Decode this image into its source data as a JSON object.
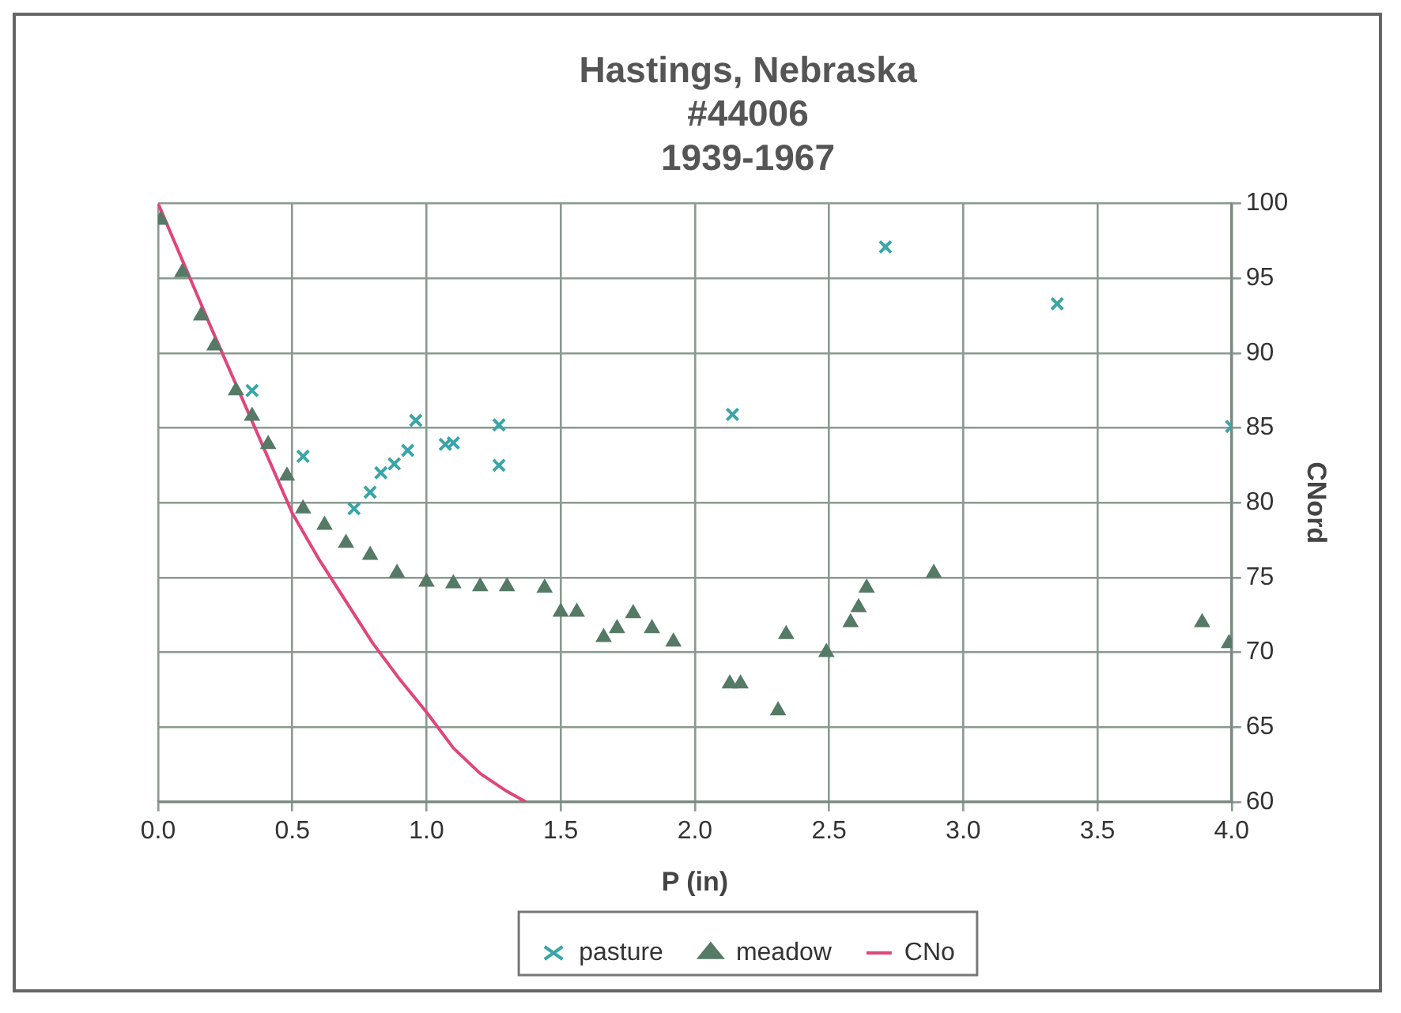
{
  "chart_data": {
    "type": "scatter",
    "title": "Hastings, Nebraska\n#44006\n1939-1967",
    "xlabel": "P (in)",
    "y2label": "CNord",
    "xlim": [
      0,
      4
    ],
    "xticks": [
      {
        "value": 0,
        "label": "0.0"
      },
      {
        "value": 0.5,
        "label": "0.5"
      },
      {
        "value": 1,
        "label": "1.0"
      },
      {
        "value": 1.5,
        "label": "1.5"
      },
      {
        "value": 2,
        "label": "2.0"
      },
      {
        "value": 2.5,
        "label": "2.5"
      },
      {
        "value": 3,
        "label": "3.0"
      },
      {
        "value": 3.5,
        "label": "3.5"
      },
      {
        "value": 4,
        "label": "4.0"
      }
    ],
    "y2lim": [
      60,
      100
    ],
    "y2ticks": [
      60,
      65,
      70,
      75,
      80,
      85,
      90,
      95,
      100
    ],
    "grid": true,
    "legend": "bottom",
    "series": [
      {
        "name": "pasture",
        "type": "scatter",
        "axis": "y2",
        "marker": "cross",
        "color": "#3aa5a8",
        "x": [
          0.35,
          0.54,
          0.73,
          0.79,
          0.83,
          0.88,
          0.93,
          0.96,
          1.07,
          1.1,
          1.27,
          1.27,
          2.14,
          2.71,
          3.35,
          4.0
        ],
        "values": [
          87.5,
          83.1,
          79.6,
          80.7,
          82.0,
          82.6,
          83.5,
          85.5,
          83.9,
          84.0,
          85.2,
          82.5,
          85.9,
          97.1,
          93.3,
          85.1
        ]
      },
      {
        "name": "meadow",
        "type": "scatter",
        "axis": "y2",
        "marker": "triangle",
        "color": "#557a66",
        "x": [
          0.01,
          0.09,
          0.16,
          0.21,
          0.29,
          0.35,
          0.41,
          0.48,
          0.54,
          0.62,
          0.7,
          0.79,
          0.89,
          1.0,
          1.1,
          1.2,
          1.3,
          1.44,
          1.5,
          1.56,
          1.66,
          1.71,
          1.77,
          1.84,
          1.92,
          2.13,
          2.17,
          2.31,
          2.34,
          2.49,
          2.58,
          2.61,
          2.64,
          2.89,
          3.89,
          3.99
        ],
        "values": [
          98.9,
          95.4,
          92.5,
          90.5,
          87.5,
          85.8,
          83.9,
          81.8,
          79.6,
          78.5,
          77.3,
          76.5,
          75.3,
          74.7,
          74.6,
          74.4,
          74.4,
          74.3,
          72.7,
          72.7,
          71.0,
          71.6,
          72.6,
          71.6,
          70.7,
          67.9,
          67.9,
          66.1,
          71.2,
          70.0,
          72.0,
          73.0,
          74.3,
          75.3,
          72.0,
          70.6
        ]
      },
      {
        "name": "CNo",
        "type": "line",
        "axis": "y2",
        "marker": "none",
        "line_style": "solid",
        "color": "#e0457b",
        "x": [
          0,
          0.1,
          0.2,
          0.3,
          0.4,
          0.5,
          0.6,
          0.7,
          0.8,
          0.9,
          1.0,
          1.1,
          1.2,
          1.3,
          1.37
        ],
        "values": [
          100,
          95.8,
          91.6,
          87.5,
          83.4,
          79.3,
          76.2,
          73.4,
          70.6,
          68.2,
          66.0,
          63.6,
          61.9,
          60.7,
          60
        ]
      }
    ]
  }
}
